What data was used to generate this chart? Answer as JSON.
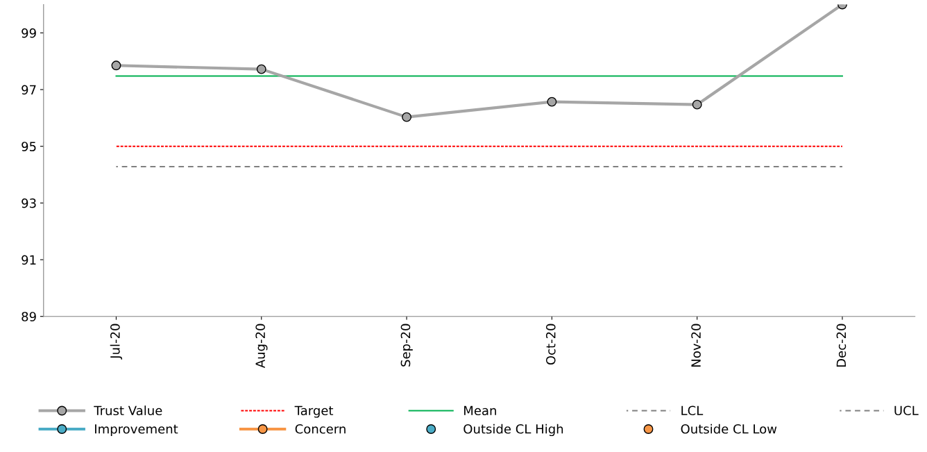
{
  "chart_data": {
    "type": "line",
    "categories": [
      "Jul-20",
      "Aug-20",
      "Sep-20",
      "Oct-20",
      "Nov-20",
      "Dec-20"
    ],
    "series": [
      {
        "name": "Trust Value",
        "color": "#a6a6a6",
        "values": [
          97.85,
          97.72,
          96.03,
          96.57,
          96.47,
          100.0
        ],
        "marker": "circle",
        "line_style": "solid"
      },
      {
        "name": "Improvement",
        "color": "#4bacc6",
        "values": [
          null,
          null,
          null,
          null,
          null,
          null
        ],
        "marker": "circle",
        "line_style": "solid"
      },
      {
        "name": "Target",
        "color": "#ff0000",
        "values": [
          95,
          95,
          95,
          95,
          95,
          95
        ],
        "marker": "none",
        "line_style": "dotted"
      },
      {
        "name": "Concern",
        "color": "#f79646",
        "values": [
          null,
          null,
          null,
          null,
          null,
          null
        ],
        "marker": "circle",
        "line_style": "solid"
      },
      {
        "name": "Mean",
        "color": "#00b050",
        "values": [
          97.48,
          97.48,
          97.48,
          97.48,
          97.48,
          97.48
        ],
        "marker": "none",
        "line_style": "solid"
      },
      {
        "name": "Outside CL High",
        "type": "scatter",
        "color": "#4bacc6",
        "values": [
          null,
          null,
          null,
          null,
          null,
          null
        ],
        "marker": "circle"
      },
      {
        "name": "LCL",
        "color": "#808080",
        "values": [
          94.28,
          94.28,
          94.28,
          94.28,
          94.28,
          94.28
        ],
        "marker": "none",
        "line_style": "dashed"
      },
      {
        "name": "Outside CL Low",
        "type": "scatter",
        "color": "#f79646",
        "values": [
          null,
          null,
          null,
          null,
          null,
          null
        ],
        "marker": "circle"
      },
      {
        "name": "UCL",
        "color": "#808080",
        "values": [
          null,
          null,
          null,
          null,
          null,
          null
        ],
        "marker": "none",
        "line_style": "dashed"
      }
    ],
    "ylim": [
      89,
      100
    ],
    "yticks": [
      89,
      91,
      93,
      95,
      97,
      99
    ],
    "grid": false,
    "legend": "bottom"
  }
}
